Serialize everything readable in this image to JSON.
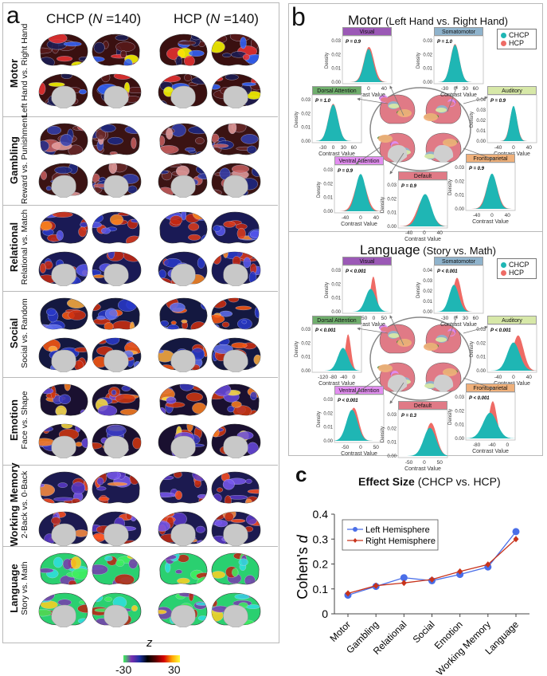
{
  "panel_a": {
    "letter": "a",
    "columns": [
      {
        "label": "CHCP (",
        "n_symbol": "N",
        "n_rest": " =140)"
      },
      {
        "label": "HCP (",
        "n_symbol": "N",
        "n_rest": " =140)"
      }
    ],
    "rows": [
      {
        "task": "Motor",
        "contrast": "Left Hand vs. Right Hand",
        "scheme": "motor"
      },
      {
        "task": "Gambling",
        "contrast": "Reward vs. Punishment",
        "scheme": "gambling"
      },
      {
        "task": "Relational",
        "contrast": "Relational vs. Match",
        "scheme": "relational"
      },
      {
        "task": "Social",
        "contrast": "Social vs. Random",
        "scheme": "social"
      },
      {
        "task": "Emotion",
        "contrast": "Face vs. Shape",
        "scheme": "emotion"
      },
      {
        "task": "Working Memory",
        "contrast": "2-Back vs. 0-Back",
        "scheme": "wm"
      },
      {
        "task": "Language",
        "contrast": "Story vs. Math",
        "scheme": "language"
      }
    ],
    "colorbar": {
      "label": "z",
      "min_label": "-30",
      "max_label": "30",
      "stops": [
        "#3cf25a",
        "#7a2fb0",
        "#1b2fa0",
        "#000000",
        "#5a0000",
        "#d40000",
        "#ffa000",
        "#ffff40"
      ]
    }
  },
  "panel_b": {
    "letter": "b",
    "legend": [
      {
        "label": "CHCP",
        "color": "#1fb6b4"
      },
      {
        "label": "HCP",
        "color": "#ee6b65"
      }
    ],
    "x_axis_label": "Contrast Value",
    "y_axis_label": "Density",
    "sections": [
      {
        "title_bold": "Motor",
        "title_rest": " (Left Hand vs. Right Hand)",
        "networks": [
          {
            "name": "Visual",
            "color": "#9b59b6",
            "p": "P = 0.9",
            "yticks": [
              "0.00",
              "0.01",
              "0.02",
              "0.03"
            ],
            "xticks": [
              "-40",
              "0",
              "40"
            ],
            "chcp": {
              "mu": 0,
              "sd": 12,
              "peak": 0.8
            },
            "hcp": {
              "mu": 1,
              "sd": 13,
              "peak": 0.85
            }
          },
          {
            "name": "Somatomotor",
            "color": "#8fb3cc",
            "p": "P = 1.0",
            "yticks": [
              "0.00",
              "0.01",
              "0.02",
              "0.03"
            ],
            "xticks": [
              "-30",
              "0",
              "30",
              "60"
            ],
            "chcp": {
              "mu": 0,
              "sd": 13,
              "peak": 0.9
            },
            "hcp": {
              "mu": 0,
              "sd": 13,
              "peak": 0.92
            }
          },
          {
            "name": "Dorsal Attention",
            "color": "#6fae6c",
            "p": "P = 1.0",
            "yticks": [
              "0.00",
              "0.01",
              "0.02",
              "0.03"
            ],
            "xticks": [
              "-30",
              "0",
              "30",
              "60"
            ],
            "chcp": {
              "mu": 0,
              "sd": 14,
              "peak": 0.88
            },
            "hcp": {
              "mu": 0,
              "sd": 14,
              "peak": 0.9
            }
          },
          {
            "name": "Auditory",
            "color": "#d7e8a8",
            "p": "P = 0.9",
            "yticks": [
              "0.00",
              "0.01",
              "0.02",
              "0.03",
              "0.04"
            ],
            "xticks": [
              "-40",
              "0",
              "40"
            ],
            "chcp": {
              "mu": 0,
              "sd": 9,
              "peak": 0.85
            },
            "hcp": {
              "mu": 0,
              "sd": 9.5,
              "peak": 0.82
            }
          },
          {
            "name": "Ventral Attention",
            "color": "#e28ef0",
            "p": "P = 0.9",
            "yticks": [
              "0.00",
              "0.01",
              "0.02",
              "0.03"
            ],
            "xticks": [
              "-40",
              "0",
              "40"
            ],
            "chcp": {
              "mu": 0,
              "sd": 13,
              "peak": 0.9
            },
            "hcp": {
              "mu": 0,
              "sd": 15,
              "peak": 0.82
            }
          },
          {
            "name": "Default",
            "color": "#e07a86",
            "p": "P = 0.9",
            "yticks": [
              "0.00",
              "0.01",
              "0.02",
              "0.03"
            ],
            "xticks": [
              "-40",
              "0",
              "40"
            ],
            "chcp": {
              "mu": 2,
              "sd": 16,
              "peak": 0.78
            },
            "hcp": {
              "mu": 0,
              "sd": 18,
              "peak": 0.7
            }
          },
          {
            "name": "Frontoparietal",
            "color": "#efb07a",
            "p": "P = 0.9",
            "yticks": [
              "0.00",
              "0.01",
              "0.02",
              "0.03"
            ],
            "xticks": [
              "-40",
              "0",
              "40"
            ],
            "chcp": {
              "mu": 0,
              "sd": 13,
              "peak": 0.85
            },
            "hcp": {
              "mu": 0,
              "sd": 14,
              "peak": 0.82
            }
          }
        ]
      },
      {
        "title_bold": "Language",
        "title_rest": " (Story vs. Math)",
        "networks": [
          {
            "name": "Visual",
            "color": "#9b59b6",
            "p": "P < 0.001",
            "yticks": [
              "0.00",
              "0.01",
              "0.02",
              "0.03"
            ],
            "xticks": [
              "-100",
              "-50",
              "0",
              "50"
            ],
            "chcp": {
              "mu": -15,
              "sd": 25,
              "peak": 0.55
            },
            "hcp": {
              "mu": -2,
              "sd": 14,
              "peak": 0.85
            }
          },
          {
            "name": "Somatomotor",
            "color": "#8fb3cc",
            "p": "P < 0.001",
            "yticks": [
              "0.00",
              "0.01",
              "0.02",
              "0.03",
              "0.04"
            ],
            "xticks": [
              "-30",
              "0",
              "30",
              "60"
            ],
            "chcp": {
              "mu": -3,
              "sd": 14,
              "peak": 0.65
            },
            "hcp": {
              "mu": 6,
              "sd": 12,
              "peak": 0.82
            }
          },
          {
            "name": "Dorsal Attention",
            "color": "#6fae6c",
            "p": "P < 0.001",
            "yticks": [
              "0.00",
              "0.01",
              "0.02",
              "0.03"
            ],
            "xticks": [
              "-120",
              "-80",
              "-40",
              "0"
            ],
            "chcp": {
              "mu": -42,
              "sd": 20,
              "peak": 0.55
            },
            "hcp": {
              "mu": -22,
              "sd": 11,
              "peak": 0.88
            }
          },
          {
            "name": "Auditory",
            "color": "#d7e8a8",
            "p": "P < 0.001",
            "yticks": [
              "0.00",
              "0.01",
              "0.02",
              "0.03"
            ],
            "xticks": [
              "-40",
              "0",
              "40"
            ],
            "chcp": {
              "mu": 0,
              "sd": 16,
              "peak": 0.68
            },
            "hcp": {
              "mu": 12,
              "sd": 14,
              "peak": 0.85
            }
          },
          {
            "name": "Ventral Attention",
            "color": "#e28ef0",
            "p": "P < 0.001",
            "yticks": [
              "0.00",
              "0.01",
              "0.02",
              "0.03"
            ],
            "xticks": [
              "-50",
              "0",
              "50"
            ],
            "chcp": {
              "mu": -28,
              "sd": 18,
              "peak": 0.75
            },
            "hcp": {
              "mu": -22,
              "sd": 16,
              "peak": 0.8
            }
          },
          {
            "name": "Default",
            "color": "#e07a86",
            "p": "P = 0.3",
            "yticks": [
              "0.00",
              "0.01",
              "0.02",
              "0.03"
            ],
            "xticks": [
              "-50",
              "0",
              "50"
            ],
            "chcp": {
              "mu": 18,
              "sd": 20,
              "peak": 0.68
            },
            "hcp": {
              "mu": 22,
              "sd": 18,
              "peak": 0.8
            }
          },
          {
            "name": "Frontoparietal",
            "color": "#efb07a",
            "p": "P < 0.001",
            "yticks": [
              "0.00",
              "0.01",
              "0.02",
              "0.03"
            ],
            "xticks": [
              "-80",
              "-40",
              "0"
            ],
            "chcp": {
              "mu": -45,
              "sd": 18,
              "peak": 0.62
            },
            "hcp": {
              "mu": -38,
              "sd": 10,
              "peak": 0.9
            }
          }
        ]
      }
    ]
  },
  "chart_data": {
    "type": "line",
    "panel_letter": "c",
    "title_bold": "Effect Size",
    "title_rest": " (CHCP vs. HCP)",
    "title": "Effect Size (CHCP vs. HCP)",
    "xlabel": "",
    "ylabel_prefix": "Cohen's ",
    "ylabel_symbol": "d",
    "ylabel": "Cohen's d",
    "categories": [
      "Motor",
      "Gambling",
      "Relational",
      "Social",
      "Emotion",
      "Working Memory",
      "Language"
    ],
    "ylim": [
      0,
      0.4
    ],
    "yticks": [
      0,
      0.1,
      0.2,
      0.3,
      0.4
    ],
    "ytick_labels": [
      "0",
      "0.1",
      "0.2",
      "0.3",
      "0.4"
    ],
    "grid": false,
    "legend_position": "top-left",
    "series": [
      {
        "name": "Left Hemisphere",
        "color": "#4a6ee8",
        "marker": "circle",
        "values": [
          0.075,
          0.11,
          0.145,
          0.133,
          0.158,
          0.188,
          0.33
        ]
      },
      {
        "name": "Right Hemisphere",
        "color": "#c8331b",
        "marker": "diamond",
        "values": [
          0.082,
          0.113,
          0.124,
          0.138,
          0.17,
          0.198,
          0.3
        ]
      }
    ]
  }
}
